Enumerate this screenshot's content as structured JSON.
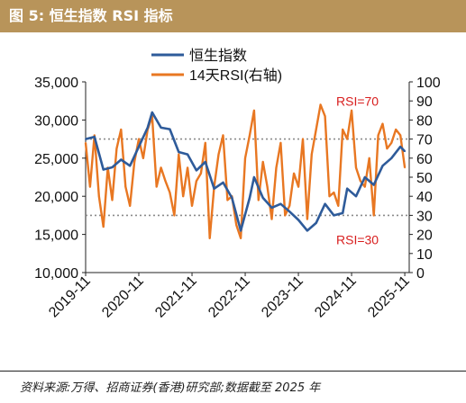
{
  "figure": {
    "title": "图 5:  恒生指数 RSI 指标",
    "source": "资料来源:万得、招商证券(香港)研究部;数据截至 2025 年"
  },
  "colors": {
    "title_bg": "#b8945a",
    "hsi": "#2e5b9a",
    "rsi": "#e87722",
    "annotation": "#d81e1e",
    "reference": "#8a8a8a"
  },
  "chart_data": {
    "type": "line",
    "title": "",
    "x_ticks": [
      "2019-11",
      "2020-11",
      "2021-11",
      "2022-11",
      "2023-11",
      "2024-11",
      "2025-11"
    ],
    "x_range": [
      "2019-11",
      "2025-12"
    ],
    "y_left": {
      "range": [
        10000,
        35000
      ],
      "ticks": [
        "10,000",
        "15,000",
        "20,000",
        "25,000",
        "30,000",
        "35,000"
      ]
    },
    "y_right": {
      "range": [
        0,
        100
      ],
      "ticks": [
        "0",
        "10",
        "20",
        "30",
        "40",
        "50",
        "60",
        "70",
        "80",
        "90",
        "100"
      ]
    },
    "reference_lines": [
      {
        "value": 70,
        "label": "RSI=70",
        "axis": "right"
      },
      {
        "value": 30,
        "label": "RSI=30",
        "axis": "right"
      }
    ],
    "legend": {
      "position": "top-center"
    },
    "series": [
      {
        "name": "恒生指数",
        "axis": "left",
        "x": [
          "2019-11",
          "2020-01",
          "2020-03",
          "2020-05",
          "2020-07",
          "2020-09",
          "2020-11",
          "2021-01",
          "2021-02",
          "2021-04",
          "2021-06",
          "2021-08",
          "2021-10",
          "2021-12",
          "2022-02",
          "2022-04",
          "2022-06",
          "2022-08",
          "2022-10",
          "2022-12",
          "2023-01",
          "2023-03",
          "2023-05",
          "2023-07",
          "2023-09",
          "2023-11",
          "2024-01",
          "2024-03",
          "2024-05",
          "2024-07",
          "2024-09",
          "2024-10",
          "2024-12",
          "2025-02",
          "2025-04",
          "2025-06",
          "2025-08",
          "2025-10",
          "2025-11"
        ],
        "values": [
          27500,
          27800,
          23500,
          23800,
          24800,
          24000,
          26500,
          29000,
          31000,
          29000,
          28800,
          25800,
          25500,
          23400,
          24500,
          21000,
          21800,
          19800,
          15500,
          19800,
          22500,
          19800,
          18500,
          19000,
          18000,
          16900,
          15500,
          16500,
          19000,
          17500,
          17800,
          21000,
          20000,
          22500,
          21500,
          24000,
          25000,
          26500,
          25900
        ]
      },
      {
        "name": "14天RSI(右轴)",
        "axis": "right",
        "x": [
          "2019-11",
          "2019-12",
          "2020-01",
          "2020-02",
          "2020-03",
          "2020-04",
          "2020-05",
          "2020-06",
          "2020-07",
          "2020-08",
          "2020-09",
          "2020-10",
          "2020-11",
          "2020-12",
          "2021-01",
          "2021-02",
          "2021-03",
          "2021-04",
          "2021-05",
          "2021-06",
          "2021-07",
          "2021-08",
          "2021-09",
          "2021-10",
          "2021-11",
          "2021-12",
          "2022-01",
          "2022-02",
          "2022-03",
          "2022-04",
          "2022-05",
          "2022-06",
          "2022-07",
          "2022-08",
          "2022-09",
          "2022-10",
          "2022-11",
          "2022-12",
          "2023-01",
          "2023-02",
          "2023-03",
          "2023-04",
          "2023-05",
          "2023-06",
          "2023-07",
          "2023-08",
          "2023-09",
          "2023-10",
          "2023-11",
          "2023-12",
          "2024-01",
          "2024-02",
          "2024-03",
          "2024-04",
          "2024-05",
          "2024-06",
          "2024-07",
          "2024-08",
          "2024-09",
          "2024-10",
          "2024-11",
          "2024-12",
          "2025-01",
          "2025-02",
          "2025-03",
          "2025-04",
          "2025-05",
          "2025-06",
          "2025-07",
          "2025-08",
          "2025-09",
          "2025-10",
          "2025-11"
        ],
        "values": [
          68,
          45,
          72,
          40,
          24,
          55,
          38,
          65,
          75,
          45,
          35,
          58,
          70,
          60,
          75,
          82,
          45,
          55,
          48,
          42,
          30,
          62,
          40,
          55,
          35,
          48,
          52,
          68,
          18,
          45,
          62,
          72,
          38,
          40,
          25,
          18,
          60,
          72,
          85,
          38,
          58,
          45,
          28,
          55,
          68,
          30,
          35,
          52,
          45,
          70,
          28,
          62,
          75,
          88,
          82,
          40,
          42,
          35,
          75,
          70,
          85,
          55,
          48,
          45,
          60,
          30,
          72,
          78,
          65,
          68,
          75,
          72,
          55
        ]
      }
    ]
  }
}
